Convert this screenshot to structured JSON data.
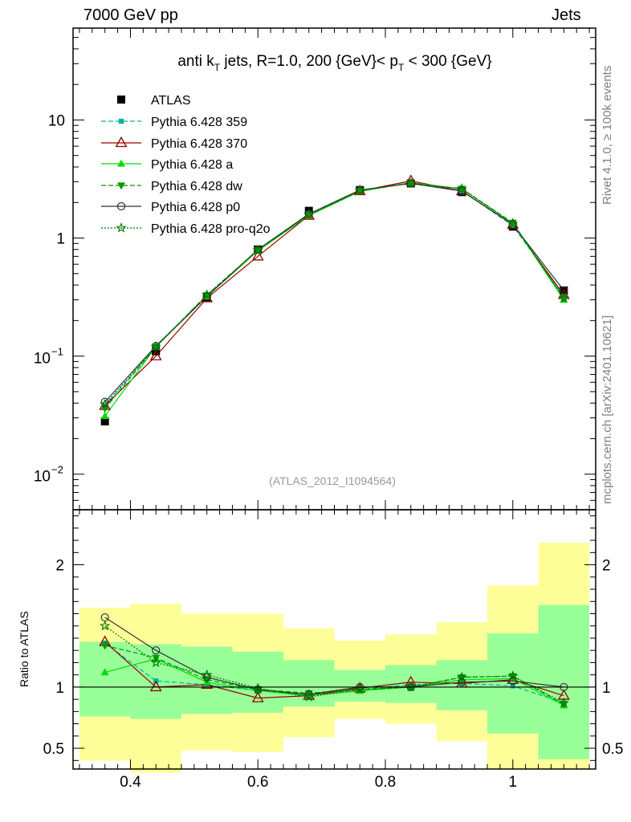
{
  "header": {
    "left": "7000 GeV pp",
    "right": "Jets"
  },
  "side_labels": {
    "top": "Rivet 4.1.0, ≥ 100k events",
    "bottom": "mcplots.cern.ch [arXiv:2401.10621]"
  },
  "colors": {
    "band_inner": "#99ff99",
    "band_outer": "#ffff99"
  },
  "chart_data": [
    {
      "type": "line",
      "yscale": "log",
      "title_parts": {
        "a": "anti k",
        "a_sub": "T",
        "b": " jets, R=1.0,  200 {GeV}< p",
        "b_sub": "T",
        "c": " < 300 {GeV}"
      },
      "watermark": "(ATLAS_2012_I1094564)",
      "xlim": [
        0.31,
        1.13
      ],
      "ylim": [
        0.005,
        60
      ],
      "y_ticks": [
        {
          "value": 0.01,
          "base": "10",
          "exp": "−2"
        },
        {
          "value": 0.1,
          "base": "10",
          "exp": "−1"
        },
        {
          "value": 1,
          "label": "1"
        },
        {
          "value": 10,
          "label": "10"
        }
      ],
      "x": [
        0.36,
        0.44,
        0.52,
        0.6,
        0.68,
        0.76,
        0.84,
        0.92,
        1.0,
        1.08
      ],
      "data": {
        "name": "ATLAS",
        "color": "#000000",
        "values": [
          0.028,
          0.11,
          0.31,
          0.8,
          1.7,
          2.55,
          2.9,
          2.45,
          1.25,
          0.36
        ]
      },
      "series": [
        {
          "name": "Pythia 6.428 359",
          "color": "#00b3a0",
          "dash": "6,3",
          "marker": "square",
          "values": [
            0.038,
            0.12,
            0.32,
            0.78,
            1.6,
            2.5,
            2.95,
            2.52,
            1.27,
            0.32
          ]
        },
        {
          "name": "Pythia 6.428 370",
          "color": "#990000",
          "dash": "",
          "marker": "triangle-open",
          "values": [
            0.038,
            0.1,
            0.31,
            0.7,
            1.55,
            2.5,
            3.05,
            2.5,
            1.3,
            0.33
          ]
        },
        {
          "name": "Pythia 6.428 a",
          "color": "#00dd00",
          "dash": "",
          "marker": "triangle",
          "values": [
            0.031,
            0.12,
            0.32,
            0.78,
            1.55,
            2.48,
            2.95,
            2.6,
            1.33,
            0.3
          ]
        },
        {
          "name": "Pythia 6.428 dw",
          "color": "#009900",
          "dash": "6,3",
          "marker": "triangle-down",
          "values": [
            0.036,
            0.12,
            0.33,
            0.79,
            1.56,
            2.5,
            2.92,
            2.62,
            1.35,
            0.31
          ]
        },
        {
          "name": "Pythia 6.428 p0",
          "color": "#333333",
          "dash": "",
          "marker": "circle-open",
          "values": [
            0.041,
            0.122,
            0.32,
            0.8,
            1.6,
            2.55,
            2.9,
            2.5,
            1.3,
            0.36
          ]
        },
        {
          "name": "Pythia 6.428 pro-q2o",
          "color": "#007700",
          "dash": "2,2",
          "marker": "star",
          "values": [
            0.039,
            0.12,
            0.33,
            0.79,
            1.58,
            2.52,
            2.92,
            2.62,
            1.33,
            0.31
          ]
        }
      ]
    },
    {
      "type": "line",
      "ylabel": "Ratio to ATLAS",
      "xlim": [
        0.31,
        1.13
      ],
      "ylim": [
        0.33,
        2.45
      ],
      "y_ticks": [
        0.5,
        1,
        2
      ],
      "x_ticks": [
        0.4,
        0.6,
        0.8,
        1
      ],
      "x_tick_labels": [
        "0.4",
        "0.6",
        "0.8",
        "1"
      ],
      "ref_line": 1,
      "bin_edges": [
        0.32,
        0.4,
        0.48,
        0.56,
        0.64,
        0.72,
        0.8,
        0.88,
        0.96,
        1.04,
        1.12
      ],
      "band_inner": {
        "lo": [
          0.76,
          0.74,
          0.78,
          0.79,
          0.84,
          0.88,
          0.87,
          0.81,
          0.62,
          0.41
        ],
        "hi": [
          1.37,
          1.35,
          1.33,
          1.29,
          1.22,
          1.14,
          1.18,
          1.22,
          1.44,
          1.67
        ]
      },
      "band_outer": {
        "lo": [
          0.4,
          0.3,
          0.48,
          0.47,
          0.59,
          0.74,
          0.7,
          0.56,
          0.33,
          0.33
        ],
        "hi": [
          1.65,
          1.68,
          1.6,
          1.6,
          1.48,
          1.38,
          1.43,
          1.53,
          1.83,
          2.18
        ]
      },
      "series": [
        {
          "name": "Pythia 6.428 359",
          "values": [
            1.36,
            1.05,
            1.02,
            0.97,
            0.94,
            0.98,
            1.02,
            1.03,
            1.01,
            0.87
          ]
        },
        {
          "name": "Pythia 6.428 370",
          "values": [
            1.37,
            1.0,
            1.02,
            0.91,
            0.93,
            0.99,
            1.04,
            1.03,
            1.06,
            0.93
          ]
        },
        {
          "name": "Pythia 6.428 a",
          "values": [
            1.12,
            1.23,
            1.04,
            0.97,
            0.93,
            0.97,
            1.0,
            1.06,
            1.07,
            0.85
          ]
        },
        {
          "name": "Pythia 6.428 dw",
          "values": [
            1.34,
            1.24,
            1.06,
            0.98,
            0.95,
            0.98,
            1.0,
            1.08,
            1.09,
            0.86
          ]
        },
        {
          "name": "Pythia 6.428 p0",
          "values": [
            1.57,
            1.3,
            1.08,
            0.98,
            0.94,
            1.0,
            1.0,
            1.04,
            1.05,
            1.0
          ]
        },
        {
          "name": "Pythia 6.428 pro-q2o",
          "values": [
            1.5,
            1.2,
            1.1,
            0.99,
            0.92,
            0.98,
            1.0,
            1.08,
            1.09,
            0.87
          ]
        }
      ]
    }
  ]
}
